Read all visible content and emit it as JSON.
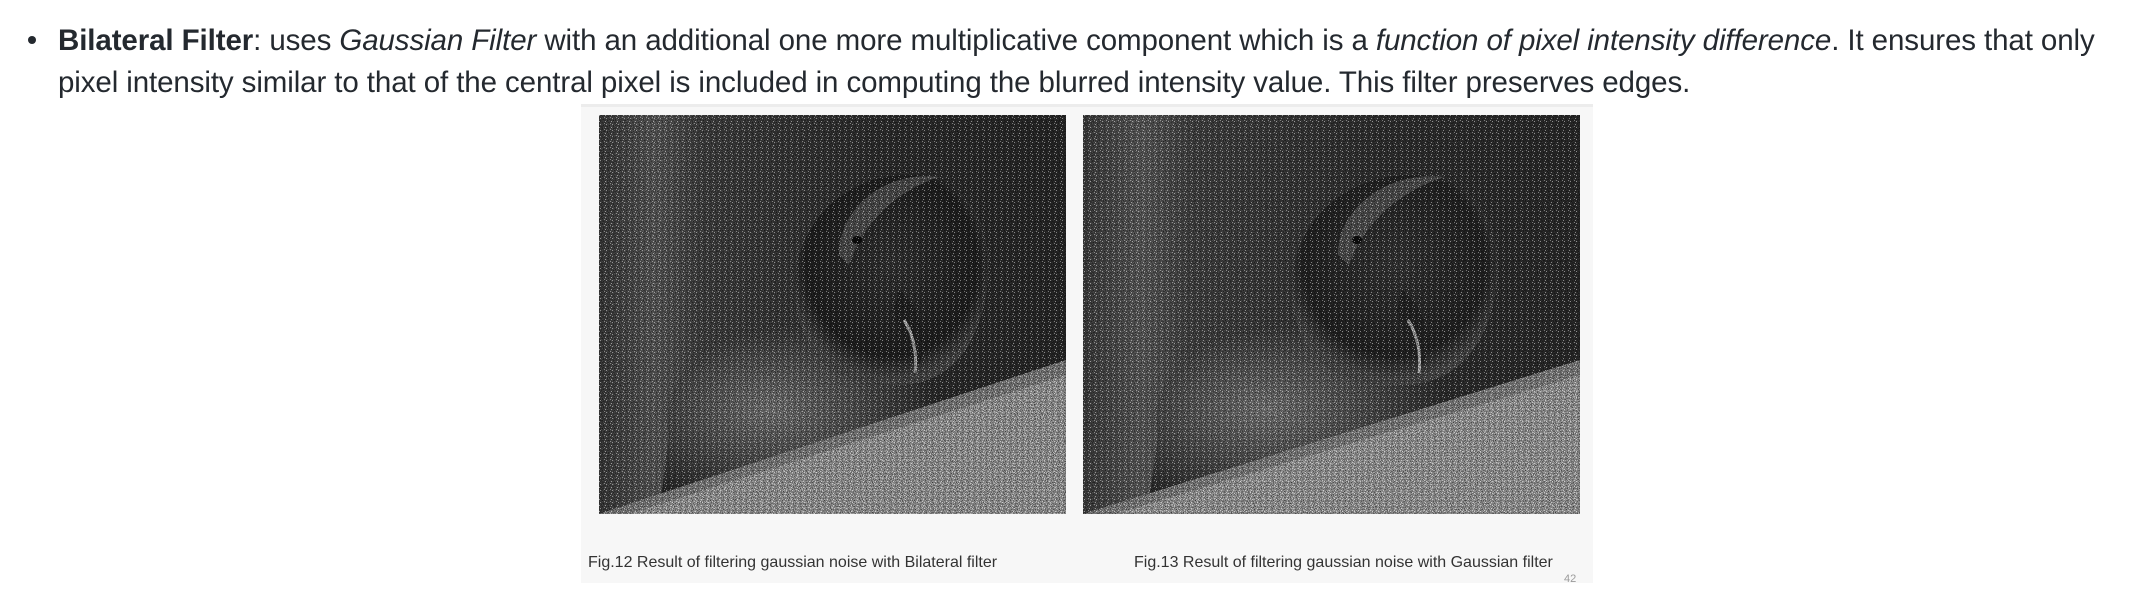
{
  "paragraph": {
    "term": "Bilateral Filter",
    "seg1": ": uses ",
    "italic1": "Gaussian Filter",
    "seg2": " with an additional one more multiplicative component which is a ",
    "italic2": "function of pixel intensity difference",
    "seg3": ". It ensures that only pixel intensity similar to that of the central pixel is included in computing the blurred intensity value. This filter preserves edges."
  },
  "figure": {
    "caption_left": "Fig.12 Result of filtering gaussian noise with Bilateral filter",
    "caption_right": "Fig.13 Result of filtering gaussian noise with Gaussian  filter",
    "page_number": "42"
  }
}
